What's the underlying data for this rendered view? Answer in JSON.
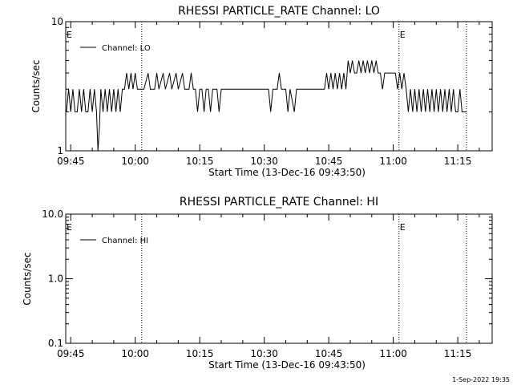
{
  "footer": {
    "timestamp": "1-Sep-2022 19:35"
  },
  "chart_data": [
    {
      "type": "line",
      "title": "RHESSI PARTICLE_RATE Channel: LO",
      "xlabel": "Start Time (13-Dec-16 09:43:50)",
      "ylabel": "Counts/sec",
      "y_scale": "log",
      "xlim": [
        "09:43:50",
        "11:23:00"
      ],
      "ylim": [
        1,
        10
      ],
      "x_ticks": [
        "09:45",
        "10:00",
        "10:15",
        "10:30",
        "10:45",
        "11:00",
        "11:15"
      ],
      "y_ticks": [
        "1",
        "10"
      ],
      "legend": {
        "position": "top-left",
        "entries": [
          "Channel: LO"
        ]
      },
      "event_lines": [
        {
          "time": "10:01:30",
          "label": ""
        },
        {
          "time": "11:01:20",
          "label": "E"
        },
        {
          "time": "11:17:00",
          "label": ""
        }
      ],
      "edge_marker": "E",
      "series": [
        {
          "name": "Channel: LO",
          "points": [
            [
              "09:44:00",
              2
            ],
            [
              "09:44:30",
              3
            ],
            [
              "09:45:00",
              2
            ],
            [
              "09:45:30",
              3
            ],
            [
              "09:46:00",
              2
            ],
            [
              "09:46:30",
              2
            ],
            [
              "09:47:00",
              3
            ],
            [
              "09:47:30",
              2
            ],
            [
              "09:48:00",
              3
            ],
            [
              "09:48:30",
              2
            ],
            [
              "09:49:00",
              2
            ],
            [
              "09:49:30",
              3
            ],
            [
              "09:50:00",
              2
            ],
            [
              "09:50:30",
              3
            ],
            [
              "09:51:00",
              2
            ],
            [
              "09:51:20",
              1
            ],
            [
              "09:51:40",
              1.5
            ],
            [
              "09:52:00",
              3
            ],
            [
              "09:52:30",
              2
            ],
            [
              "09:53:00",
              3
            ],
            [
              "09:53:30",
              2
            ],
            [
              "09:54:00",
              3
            ],
            [
              "09:54:30",
              2
            ],
            [
              "09:55:00",
              3
            ],
            [
              "09:55:30",
              2
            ],
            [
              "09:56:00",
              3
            ],
            [
              "09:56:30",
              2
            ],
            [
              "09:57:00",
              3
            ],
            [
              "09:57:30",
              3
            ],
            [
              "09:58:00",
              4
            ],
            [
              "09:58:30",
              3
            ],
            [
              "09:59:00",
              4
            ],
            [
              "09:59:30",
              3
            ],
            [
              "10:00:00",
              4
            ],
            [
              "10:00:30",
              3
            ],
            [
              "10:02:00",
              3
            ],
            [
              "10:03:00",
              4
            ],
            [
              "10:03:30",
              3
            ],
            [
              "10:04:30",
              3
            ],
            [
              "10:05:00",
              4
            ],
            [
              "10:05:30",
              3
            ],
            [
              "10:06:30",
              4
            ],
            [
              "10:07:00",
              3
            ],
            [
              "10:08:00",
              4
            ],
            [
              "10:08:30",
              3
            ],
            [
              "10:09:30",
              4
            ],
            [
              "10:10:00",
              3
            ],
            [
              "10:11:00",
              4
            ],
            [
              "10:11:30",
              3
            ],
            [
              "10:12:30",
              3
            ],
            [
              "10:13:00",
              4
            ],
            [
              "10:13:30",
              3
            ],
            [
              "10:14:00",
              3
            ],
            [
              "10:14:30",
              2
            ],
            [
              "10:15:00",
              3
            ],
            [
              "10:15:30",
              3
            ],
            [
              "10:16:00",
              2
            ],
            [
              "10:16:30",
              3
            ],
            [
              "10:17:00",
              3
            ],
            [
              "10:17:30",
              2
            ],
            [
              "10:18:00",
              3
            ],
            [
              "10:19:00",
              3
            ],
            [
              "10:19:30",
              2
            ],
            [
              "10:20:00",
              3
            ],
            [
              "10:31:00",
              3
            ],
            [
              "10:31:30",
              2
            ],
            [
              "10:32:00",
              3
            ],
            [
              "10:33:00",
              3
            ],
            [
              "10:33:30",
              4
            ],
            [
              "10:34:00",
              3
            ],
            [
              "10:35:00",
              3
            ],
            [
              "10:35:30",
              2
            ],
            [
              "10:36:00",
              3
            ],
            [
              "10:37:00",
              2
            ],
            [
              "10:37:30",
              3
            ],
            [
              "10:44:00",
              3
            ],
            [
              "10:44:30",
              4
            ],
            [
              "10:45:00",
              3
            ],
            [
              "10:45:30",
              4
            ],
            [
              "10:46:00",
              3
            ],
            [
              "10:46:30",
              4
            ],
            [
              "10:47:00",
              3
            ],
            [
              "10:47:30",
              4
            ],
            [
              "10:48:00",
              3
            ],
            [
              "10:48:30",
              4
            ],
            [
              "10:49:00",
              3
            ],
            [
              "10:49:30",
              5
            ],
            [
              "10:50:00",
              4
            ],
            [
              "10:50:30",
              5
            ],
            [
              "10:51:00",
              4
            ],
            [
              "10:51:30",
              4
            ],
            [
              "10:52:00",
              5
            ],
            [
              "10:52:30",
              4
            ],
            [
              "10:53:00",
              5
            ],
            [
              "10:53:30",
              4
            ],
            [
              "10:54:00",
              5
            ],
            [
              "10:54:30",
              4
            ],
            [
              "10:55:00",
              5
            ],
            [
              "10:55:30",
              4
            ],
            [
              "10:56:00",
              5
            ],
            [
              "10:56:30",
              4
            ],
            [
              "10:57:00",
              4
            ],
            [
              "10:57:30",
              3
            ],
            [
              "10:58:00",
              4
            ],
            [
              "11:00:30",
              4
            ],
            [
              "11:01:00",
              3
            ],
            [
              "11:01:30",
              4
            ],
            [
              "11:02:00",
              3
            ],
            [
              "11:02:30",
              4
            ],
            [
              "11:03:00",
              3
            ],
            [
              "11:03:30",
              2
            ],
            [
              "11:04:00",
              3
            ],
            [
              "11:04:30",
              2
            ],
            [
              "11:05:00",
              3
            ],
            [
              "11:05:30",
              2
            ],
            [
              "11:06:00",
              3
            ],
            [
              "11:06:30",
              2
            ],
            [
              "11:07:00",
              3
            ],
            [
              "11:07:30",
              2
            ],
            [
              "11:08:00",
              3
            ],
            [
              "11:08:30",
              2
            ],
            [
              "11:09:00",
              3
            ],
            [
              "11:09:30",
              2
            ],
            [
              "11:10:00",
              3
            ],
            [
              "11:10:30",
              2
            ],
            [
              "11:11:00",
              3
            ],
            [
              "11:11:30",
              2
            ],
            [
              "11:12:00",
              3
            ],
            [
              "11:12:30",
              2
            ],
            [
              "11:13:00",
              3
            ],
            [
              "11:13:30",
              2
            ],
            [
              "11:14:00",
              3
            ],
            [
              "11:14:30",
              2
            ],
            [
              "11:15:00",
              2
            ],
            [
              "11:15:30",
              3
            ],
            [
              "11:16:00",
              2
            ],
            [
              "11:17:00",
              2
            ]
          ]
        }
      ]
    },
    {
      "type": "line",
      "title": "RHESSI PARTICLE_RATE Channel: HI",
      "xlabel": "Start Time (13-Dec-16 09:43:50)",
      "ylabel": "Counts/sec",
      "y_scale": "log",
      "xlim": [
        "09:43:50",
        "11:23:00"
      ],
      "ylim": [
        0.1,
        10
      ],
      "x_ticks": [
        "09:45",
        "10:00",
        "10:15",
        "10:30",
        "10:45",
        "11:00",
        "11:15"
      ],
      "y_ticks": [
        "0.1",
        "1.0",
        "10.0"
      ],
      "legend": {
        "position": "top-left",
        "entries": [
          "Channel: HI"
        ]
      },
      "event_lines": [
        {
          "time": "10:01:30",
          "label": ""
        },
        {
          "time": "11:01:20",
          "label": "E"
        },
        {
          "time": "11:17:00",
          "label": ""
        }
      ],
      "edge_marker": "E",
      "series": [
        {
          "name": "Channel: HI",
          "points": []
        }
      ]
    }
  ]
}
